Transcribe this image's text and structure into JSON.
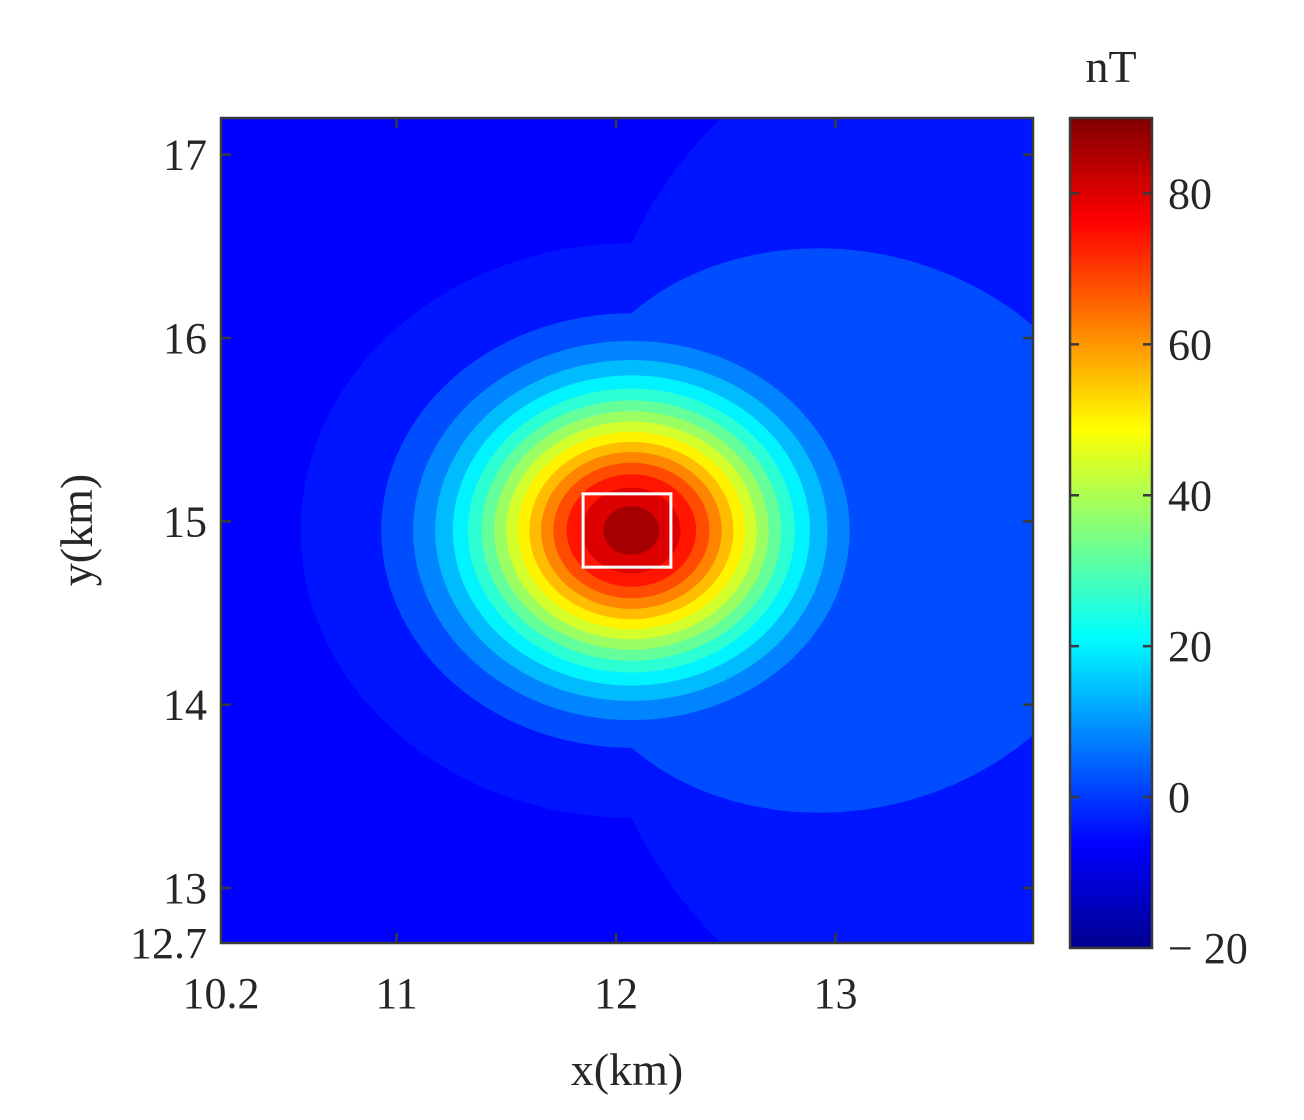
{
  "chart_data": {
    "type": "heatmap",
    "subtype": "filled-contour",
    "xlabel": "x(km)",
    "ylabel": "y(km)",
    "xlim": [
      10.2,
      13.9
    ],
    "ylim": [
      12.7,
      17.2
    ],
    "x_ticks": [
      {
        "value": 10.2,
        "label": "10.2"
      },
      {
        "value": 11,
        "label": "11"
      },
      {
        "value": 12,
        "label": "12"
      },
      {
        "value": 13,
        "label": "13"
      }
    ],
    "y_ticks": [
      {
        "value": 12.7,
        "label": "12.7"
      },
      {
        "value": 13,
        "label": "13"
      },
      {
        "value": 14,
        "label": "14"
      },
      {
        "value": 15,
        "label": "15"
      },
      {
        "value": 16,
        "label": "16"
      },
      {
        "value": 17,
        "label": "17"
      }
    ],
    "colorbar": {
      "unit_label": "nT",
      "colormap": "jet",
      "range": [
        -20,
        90
      ],
      "ticks": [
        {
          "value": -20,
          "label": "− 20"
        },
        {
          "value": 0,
          "label": "0"
        },
        {
          "value": 20,
          "label": "20"
        },
        {
          "value": 40,
          "label": "40"
        },
        {
          "value": 60,
          "label": "60"
        },
        {
          "value": 80,
          "label": "80"
        }
      ]
    },
    "anomaly": {
      "peak_value": 89,
      "center_x_km": 12.07,
      "center_y_km": 14.95,
      "background_value": -5
    },
    "source_box": {
      "x_min": 11.85,
      "x_max": 12.25,
      "y_min": 14.75,
      "y_max": 15.15,
      "color": "#ffffff"
    },
    "contour_levels": [
      86,
      80,
      74,
      68,
      62,
      56,
      50,
      44,
      38,
      32,
      26,
      20,
      14,
      8,
      2,
      -4
    ]
  }
}
